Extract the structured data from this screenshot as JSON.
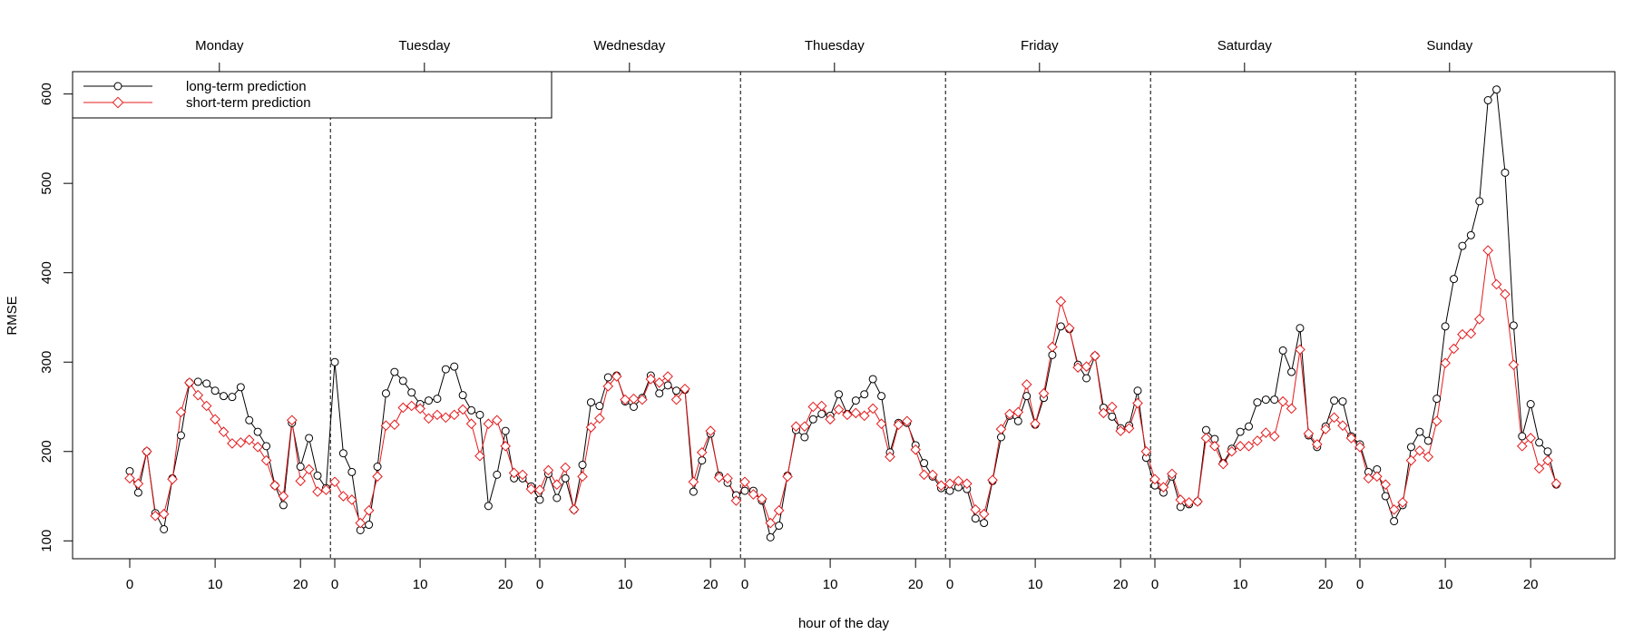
{
  "chart_data": {
    "type": "line",
    "xlabel": "hour of the day",
    "ylabel": "RMSE",
    "ylim": [
      80,
      625
    ],
    "y_ticks": [
      100,
      200,
      300,
      400,
      500,
      600
    ],
    "x_tick_hours": [
      0,
      10,
      20
    ],
    "days": [
      "Monday",
      "Tuesday",
      "Wednesday",
      "Thuesday",
      "Friday",
      "Saturday",
      "Sunday"
    ],
    "hours_per_day": 24,
    "x_note": "x is hour of the week: day index * 24 + hour of the day",
    "grid": false,
    "legend_position": "top-left",
    "series": [
      {
        "name": "long-term prediction",
        "color": "#000000",
        "marker": "circle",
        "values": [
          178,
          154,
          200,
          131,
          113,
          170,
          218,
          277,
          278,
          276,
          268,
          262,
          261,
          272,
          235,
          222,
          206,
          162,
          140,
          232,
          183,
          215,
          173,
          159,
          300,
          198,
          177,
          112,
          118,
          183,
          265,
          289,
          279,
          266,
          253,
          257,
          259,
          292,
          295,
          263,
          246,
          241,
          139,
          174,
          223,
          170,
          170,
          161,
          146,
          175,
          148,
          170,
          135,
          185,
          255,
          251,
          283,
          285,
          256,
          250,
          260,
          285,
          265,
          274,
          268,
          269,
          155,
          190,
          220,
          173,
          165,
          151,
          156,
          156,
          145,
          104,
          117,
          173,
          224,
          216,
          236,
          242,
          240,
          264,
          242,
          257,
          264,
          281,
          262,
          199,
          232,
          232,
          207,
          187,
          172,
          159,
          156,
          160,
          158,
          125,
          120,
          167,
          216,
          240,
          234,
          262,
          230,
          260,
          308,
          340,
          337,
          297,
          282,
          307,
          249,
          239,
          226,
          229,
          268,
          193,
          162,
          154,
          172,
          138,
          141,
          144,
          224,
          214,
          187,
          203,
          222,
          228,
          255,
          258,
          258,
          313,
          289,
          338,
          218,
          205,
          228,
          257,
          256,
          217,
          208,
          177,
          180,
          150,
          122,
          140,
          205,
          222,
          212,
          259,
          340,
          393,
          430,
          442,
          480,
          593,
          605,
          512,
          341,
          217,
          253,
          210,
          200,
          163
        ]
      },
      {
        "name": "short-term prediction",
        "color": "#e41a1c",
        "marker": "diamond",
        "values": [
          170,
          164,
          200,
          128,
          130,
          169,
          244,
          277,
          263,
          251,
          236,
          222,
          209,
          210,
          213,
          205,
          190,
          162,
          150,
          235,
          167,
          180,
          155,
          157,
          166,
          150,
          146,
          120,
          134,
          172,
          229,
          230,
          249,
          251,
          248,
          237,
          241,
          238,
          241,
          247,
          231,
          195,
          231,
          235,
          206,
          176,
          174,
          158,
          157,
          179,
          163,
          182,
          135,
          172,
          227,
          237,
          273,
          284,
          258,
          259,
          258,
          281,
          277,
          284,
          258,
          270,
          166,
          199,
          223,
          171,
          170,
          145,
          166,
          152,
          147,
          120,
          134,
          172,
          228,
          228,
          250,
          251,
          236,
          247,
          241,
          243,
          240,
          248,
          231,
          194,
          230,
          234,
          202,
          174,
          174,
          162,
          164,
          167,
          164,
          135,
          130,
          168,
          225,
          242,
          244,
          275,
          231,
          265,
          317,
          368,
          338,
          294,
          295,
          307,
          243,
          250,
          223,
          226,
          254,
          200,
          169,
          160,
          175,
          146,
          143,
          144,
          215,
          206,
          186,
          200,
          206,
          206,
          212,
          221,
          217,
          256,
          248,
          314,
          220,
          208,
          225,
          238,
          229,
          215,
          205,
          170,
          172,
          163,
          135,
          143,
          190,
          201,
          194,
          234,
          299,
          315,
          331,
          332,
          348,
          425,
          387,
          376,
          297,
          206,
          215,
          181,
          190,
          164
        ]
      }
    ]
  }
}
